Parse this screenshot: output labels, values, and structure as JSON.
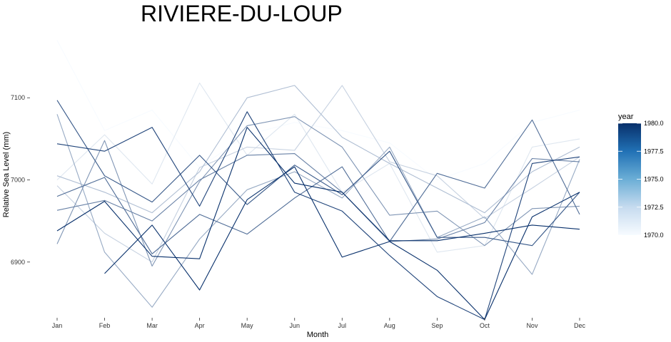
{
  "chart_data": {
    "type": "line",
    "title": "RIVIERE-DU-LOUP",
    "xlabel": "Month",
    "ylabel": "Relative Sea Level (mm)",
    "categories": [
      "Jan",
      "Feb",
      "Mar",
      "Apr",
      "May",
      "Jun",
      "Jul",
      "Aug",
      "Sep",
      "Oct",
      "Nov",
      "Dec"
    ],
    "ylim": [
      6820,
      7180
    ],
    "yticks": [
      6900,
      7000,
      7100
    ],
    "ytick_labels": [
      "6900",
      "7000",
      "7100"
    ],
    "grid": false,
    "legend": {
      "title": "year",
      "position": "right",
      "range": [
        1970,
        1980
      ],
      "ticks": [
        "1970.0",
        "1972.5",
        "1975.0",
        "1977.5",
        "1980.0"
      ],
      "tick_values": [
        1970,
        1972.5,
        1975,
        1977.5,
        1980
      ],
      "color_low": "#f7fbff",
      "color_high": "#08306b"
    },
    "series": [
      {
        "year": 1970,
        "values": [
          7170,
          7060,
          7085,
          7015,
          7055,
          7070,
          7060,
          7045,
          7000,
          7020,
          7070,
          7085
        ]
      },
      {
        "year": 1971,
        "values": [
          7000,
          7055,
          6995,
          7118,
          7030,
          7080,
          6985,
          7020,
          6912,
          6920,
          7040,
          7050
        ]
      },
      {
        "year": 1972,
        "values": [
          6993,
          6935,
          6900,
          7015,
          7040,
          7036,
          7115,
          7022,
          7005,
          6953,
          6990,
          7028
        ]
      },
      {
        "year": 1973,
        "values": [
          7005,
          6985,
          6960,
          7010,
          7100,
          7115,
          7052,
          7020,
          6990,
          6960,
          7010,
          7040
        ]
      },
      {
        "year": 1974,
        "values": [
          7080,
          6912,
          6845,
          6928,
          6988,
          7010,
          6978,
          7040,
          6930,
          6955,
          6885,
          7025
        ]
      },
      {
        "year": 1975,
        "values": [
          6922,
          7048,
          6895,
          6998,
          7066,
          7077,
          7040,
          6957,
          6962,
          6920,
          6965,
          6968
        ]
      },
      {
        "year": 1976,
        "values": [
          6963,
          6975,
          6950,
          7000,
          7030,
          7032,
          6985,
          6925,
          6928,
          6948,
          7026,
          7022
        ]
      },
      {
        "year": 1977,
        "values": [
          6980,
          7003,
          6910,
          6958,
          6934,
          6978,
          7016,
          6925,
          7008,
          6990,
          7073,
          6958
        ]
      },
      {
        "year": 1978,
        "values": [
          7097,
          7005,
          6973,
          7030,
          6970,
          7018,
          6982,
          7035,
          6930,
          6930,
          6920,
          6985
        ]
      },
      {
        "year": 1979,
        "values": [
          7044,
          7035,
          7064,
          6968,
          7083,
          6985,
          6962,
          6908,
          6858,
          6830,
          7020,
          7028
        ]
      },
      {
        "year": 1980,
        "values": [
          6938,
          6974,
          6907,
          6904,
          7064,
          6996,
          6985,
          6926,
          6926,
          6935,
          6945,
          6940
        ]
      },
      {
        "year": 1981,
        "values": [
          null,
          6886,
          6945,
          6866,
          6976,
          7016,
          6906,
          6925,
          6890,
          6830,
          6955,
          6985
        ]
      }
    ]
  }
}
